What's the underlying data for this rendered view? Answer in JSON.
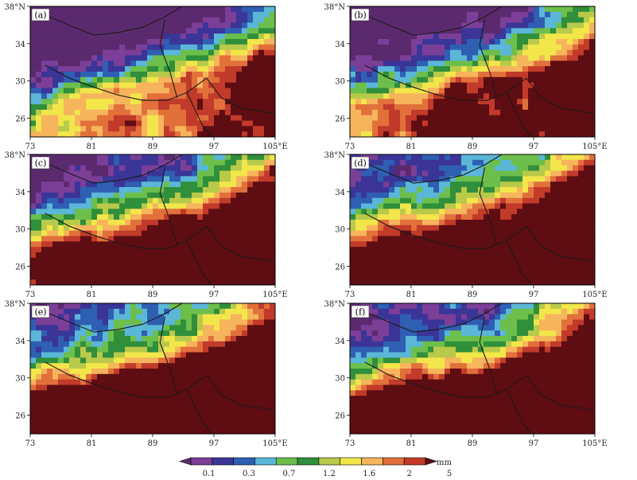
{
  "figure": {
    "panels": [
      {
        "label": "(a)",
        "wetness": 0.0
      },
      {
        "label": "(b)",
        "wetness": 0.25
      },
      {
        "label": "(c)",
        "wetness": 0.55
      },
      {
        "label": "(d)",
        "wetness": 0.75
      },
      {
        "label": "(e)",
        "wetness": 0.85
      },
      {
        "label": "(f)",
        "wetness": 0.7
      }
    ],
    "lon_ticks": [
      "73",
      "81",
      "89",
      "97",
      "105°E"
    ],
    "lat_ticks": [
      "38°N",
      "34",
      "30",
      "26"
    ],
    "lon_values": [
      73,
      81,
      89,
      97,
      105
    ],
    "lat_values": [
      38,
      34,
      30,
      26
    ],
    "lon_range": [
      73,
      105
    ],
    "lat_range": [
      24,
      38
    ],
    "colorbar": {
      "unit": "mm",
      "labels": [
        "0.1",
        "0.3",
        "0.7",
        "1.2",
        "1.6",
        "2",
        "5"
      ],
      "colors": [
        "#5b2a6e",
        "#7b3f98",
        "#3a3597",
        "#2f5fb3",
        "#5ab7d8",
        "#6cbf4a",
        "#2f8f3a",
        "#b9c94a",
        "#f2e64a",
        "#f6b45c",
        "#e2703b",
        "#c13a2a",
        "#5e0d12"
      ]
    }
  }
}
